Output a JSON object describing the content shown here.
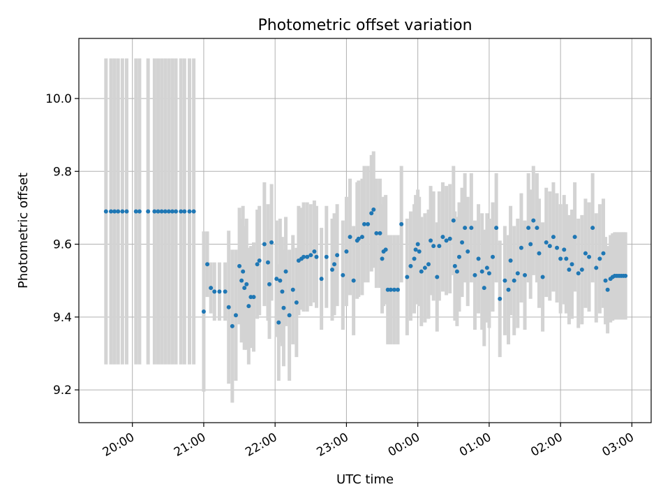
{
  "chart_data": {
    "type": "scatter",
    "title": "Photometric offset variation",
    "xlabel": "UTC time",
    "ylabel": "Photometric offset",
    "x_unit": "hours (UTC clock; values past 24 are on the next day)",
    "xlim": [
      19.25,
      27.27
    ],
    "ylim": [
      9.11,
      10.165
    ],
    "xticks": [
      {
        "value": 20,
        "label": "20:00"
      },
      {
        "value": 21,
        "label": "21:00"
      },
      {
        "value": 22,
        "label": "22:00"
      },
      {
        "value": 23,
        "label": "23:00"
      },
      {
        "value": 24,
        "label": "00:00"
      },
      {
        "value": 25,
        "label": "01:00"
      },
      {
        "value": 26,
        "label": "02:00"
      },
      {
        "value": 27,
        "label": "03:00"
      }
    ],
    "yticks": [
      {
        "value": 9.2,
        "label": "9.2"
      },
      {
        "value": 9.4,
        "label": "9.4"
      },
      {
        "value": 9.6,
        "label": "9.6"
      },
      {
        "value": 9.8,
        "label": "9.8"
      },
      {
        "value": 10.0,
        "label": "10.0"
      }
    ],
    "grid": true,
    "colors": {
      "points": "#1f77b4",
      "errorbars": "#d3d3d3",
      "grid": "#b0b0b0"
    },
    "series": [
      {
        "columns": [
          "x",
          "y",
          "yerr"
        ],
        "points": [
          [
            19.63,
            9.69,
            0.42
          ],
          [
            19.7,
            9.69,
            0.42
          ],
          [
            19.75,
            9.69,
            0.42
          ],
          [
            19.8,
            9.69,
            0.42
          ],
          [
            19.86,
            9.69,
            0.42
          ],
          [
            19.92,
            9.69,
            0.42
          ],
          [
            20.05,
            9.69,
            0.42
          ],
          [
            20.1,
            9.69,
            0.42
          ],
          [
            20.22,
            9.69,
            0.42
          ],
          [
            20.31,
            9.69,
            0.42
          ],
          [
            20.36,
            9.69,
            0.42
          ],
          [
            20.41,
            9.69,
            0.42
          ],
          [
            20.46,
            9.69,
            0.42
          ],
          [
            20.51,
            9.69,
            0.42
          ],
          [
            20.56,
            9.69,
            0.42
          ],
          [
            20.61,
            9.69,
            0.42
          ],
          [
            20.68,
            9.69,
            0.42
          ],
          [
            20.73,
            9.69,
            0.42
          ],
          [
            20.8,
            9.69,
            0.42
          ],
          [
            20.86,
            9.69,
            0.42
          ],
          [
            21.0,
            9.415,
            0.22
          ],
          [
            21.05,
            9.545,
            0.09
          ],
          [
            21.1,
            9.48,
            0.07
          ],
          [
            21.15,
            9.47,
            0.08
          ],
          [
            21.22,
            9.47,
            0.08
          ],
          [
            21.3,
            9.47,
            0.08
          ],
          [
            21.35,
            9.427,
            0.21
          ],
          [
            21.4,
            9.375,
            0.21
          ],
          [
            21.45,
            9.405,
            0.18
          ],
          [
            21.5,
            9.54,
            0.16
          ],
          [
            21.53,
            9.5,
            0.17
          ],
          [
            21.55,
            9.525,
            0.18
          ],
          [
            21.57,
            9.48,
            0.17
          ],
          [
            21.6,
            9.49,
            0.18
          ],
          [
            21.63,
            9.43,
            0.16
          ],
          [
            21.66,
            9.455,
            0.14
          ],
          [
            21.7,
            9.455,
            0.15
          ],
          [
            21.75,
            9.545,
            0.15
          ],
          [
            21.78,
            9.555,
            0.15
          ],
          [
            21.85,
            9.6,
            0.17
          ],
          [
            21.9,
            9.55,
            0.16
          ],
          [
            21.92,
            9.49,
            0.15
          ],
          [
            21.95,
            9.605,
            0.16
          ],
          [
            22.02,
            9.505,
            0.16
          ],
          [
            22.05,
            9.385,
            0.16
          ],
          [
            22.07,
            9.5,
            0.17
          ],
          [
            22.1,
            9.47,
            0.15
          ],
          [
            22.12,
            9.425,
            0.16
          ],
          [
            22.15,
            9.525,
            0.15
          ],
          [
            22.2,
            9.405,
            0.18
          ],
          [
            22.25,
            9.475,
            0.15
          ],
          [
            22.3,
            9.44,
            0.15
          ],
          [
            22.33,
            9.555,
            0.15
          ],
          [
            22.37,
            9.56,
            0.14
          ],
          [
            22.4,
            9.565,
            0.15
          ],
          [
            22.45,
            9.565,
            0.15
          ],
          [
            22.5,
            9.57,
            0.14
          ],
          [
            22.55,
            9.58,
            0.14
          ],
          [
            22.58,
            9.565,
            0.14
          ],
          [
            22.65,
            9.505,
            0.14
          ],
          [
            22.72,
            9.565,
            0.14
          ],
          [
            22.8,
            9.53,
            0.14
          ],
          [
            22.83,
            9.545,
            0.14
          ],
          [
            22.87,
            9.57,
            0.14
          ],
          [
            22.95,
            9.515,
            0.15
          ],
          [
            23.0,
            9.58,
            0.15
          ],
          [
            23.05,
            9.62,
            0.16
          ],
          [
            23.1,
            9.5,
            0.15
          ],
          [
            23.15,
            9.61,
            0.16
          ],
          [
            23.17,
            9.615,
            0.16
          ],
          [
            23.22,
            9.62,
            0.16
          ],
          [
            23.25,
            9.655,
            0.16
          ],
          [
            23.3,
            9.655,
            0.16
          ],
          [
            23.35,
            9.685,
            0.16
          ],
          [
            23.38,
            9.695,
            0.16
          ],
          [
            23.42,
            9.63,
            0.15
          ],
          [
            23.47,
            9.63,
            0.15
          ],
          [
            23.5,
            9.56,
            0.15
          ],
          [
            23.52,
            9.58,
            0.15
          ],
          [
            23.55,
            9.585,
            0.15
          ],
          [
            23.58,
            9.475,
            0.15
          ],
          [
            23.62,
            9.475,
            0.15
          ],
          [
            23.67,
            9.475,
            0.15
          ],
          [
            23.72,
            9.475,
            0.15
          ],
          [
            23.77,
            9.655,
            0.16
          ],
          [
            23.85,
            9.51,
            0.16
          ],
          [
            23.9,
            9.54,
            0.15
          ],
          [
            23.95,
            9.56,
            0.15
          ],
          [
            23.97,
            9.585,
            0.15
          ],
          [
            24.0,
            9.6,
            0.15
          ],
          [
            24.02,
            9.58,
            0.15
          ],
          [
            24.05,
            9.525,
            0.15
          ],
          [
            24.1,
            9.535,
            0.15
          ],
          [
            24.15,
            9.545,
            0.15
          ],
          [
            24.18,
            9.61,
            0.15
          ],
          [
            24.22,
            9.595,
            0.15
          ],
          [
            24.27,
            9.51,
            0.15
          ],
          [
            24.3,
            9.595,
            0.15
          ],
          [
            24.35,
            9.62,
            0.15
          ],
          [
            24.4,
            9.61,
            0.15
          ],
          [
            24.45,
            9.615,
            0.15
          ],
          [
            24.5,
            9.665,
            0.15
          ],
          [
            24.52,
            9.54,
            0.15
          ],
          [
            24.55,
            9.525,
            0.15
          ],
          [
            24.58,
            9.565,
            0.15
          ],
          [
            24.62,
            9.605,
            0.15
          ],
          [
            24.66,
            9.645,
            0.15
          ],
          [
            24.7,
            9.58,
            0.15
          ],
          [
            24.75,
            9.645,
            0.15
          ],
          [
            24.8,
            9.515,
            0.15
          ],
          [
            24.85,
            9.56,
            0.15
          ],
          [
            24.9,
            9.525,
            0.16
          ],
          [
            24.93,
            9.48,
            0.16
          ],
          [
            24.97,
            9.535,
            0.15
          ],
          [
            25.0,
            9.52,
            0.15
          ],
          [
            25.05,
            9.565,
            0.15
          ],
          [
            25.1,
            9.645,
            0.15
          ],
          [
            25.15,
            9.45,
            0.16
          ],
          [
            25.22,
            9.5,
            0.15
          ],
          [
            25.27,
            9.475,
            0.15
          ],
          [
            25.3,
            9.555,
            0.15
          ],
          [
            25.35,
            9.5,
            0.15
          ],
          [
            25.4,
            9.52,
            0.15
          ],
          [
            25.45,
            9.59,
            0.15
          ],
          [
            25.5,
            9.515,
            0.15
          ],
          [
            25.55,
            9.645,
            0.15
          ],
          [
            25.58,
            9.6,
            0.15
          ],
          [
            25.62,
            9.665,
            0.15
          ],
          [
            25.67,
            9.645,
            0.15
          ],
          [
            25.7,
            9.575,
            0.15
          ],
          [
            25.75,
            9.51,
            0.15
          ],
          [
            25.8,
            9.605,
            0.15
          ],
          [
            25.85,
            9.595,
            0.15
          ],
          [
            25.9,
            9.62,
            0.15
          ],
          [
            25.95,
            9.59,
            0.15
          ],
          [
            26.0,
            9.56,
            0.15
          ],
          [
            26.05,
            9.585,
            0.15
          ],
          [
            26.08,
            9.56,
            0.15
          ],
          [
            26.12,
            9.53,
            0.15
          ],
          [
            26.16,
            9.545,
            0.15
          ],
          [
            26.2,
            9.62,
            0.15
          ],
          [
            26.25,
            9.52,
            0.15
          ],
          [
            26.3,
            9.53,
            0.15
          ],
          [
            26.35,
            9.575,
            0.15
          ],
          [
            26.4,
            9.565,
            0.15
          ],
          [
            26.45,
            9.645,
            0.15
          ],
          [
            26.5,
            9.535,
            0.15
          ],
          [
            26.55,
            9.56,
            0.15
          ],
          [
            26.6,
            9.575,
            0.15
          ],
          [
            26.63,
            9.5,
            0.12
          ],
          [
            26.66,
            9.475,
            0.12
          ],
          [
            26.7,
            9.505,
            0.12
          ],
          [
            26.73,
            9.51,
            0.12
          ],
          [
            26.76,
            9.513,
            0.12
          ],
          [
            26.79,
            9.513,
            0.12
          ],
          [
            26.82,
            9.513,
            0.12
          ],
          [
            26.85,
            9.513,
            0.12
          ],
          [
            26.88,
            9.513,
            0.12
          ],
          [
            26.91,
            9.513,
            0.12
          ]
        ]
      }
    ]
  }
}
